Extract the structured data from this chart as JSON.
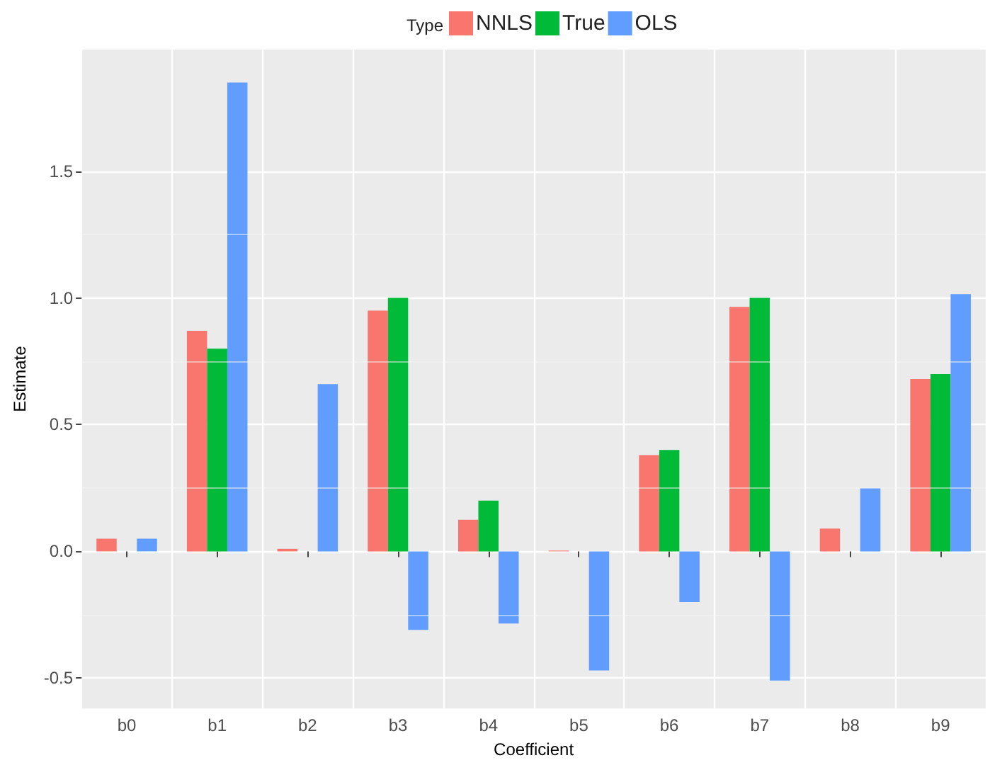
{
  "chart_data": {
    "type": "bar",
    "xlabel": "Coefficient",
    "ylabel": "Estimate",
    "legend_title": "Type",
    "categories": [
      "b0",
      "b1",
      "b2",
      "b3",
      "b4",
      "b5",
      "b6",
      "b7",
      "b8",
      "b9"
    ],
    "series": [
      {
        "name": "NNLS",
        "color": "#f8766d",
        "values": [
          0.05,
          0.87,
          0.01,
          0.95,
          0.125,
          0.003,
          0.38,
          0.965,
          0.09,
          0.68
        ]
      },
      {
        "name": "True",
        "color": "#00ba38",
        "values": [
          0,
          0.8,
          0,
          1.0,
          0.2,
          0,
          0.4,
          1.0,
          0,
          0.7
        ]
      },
      {
        "name": "OLS",
        "color": "#619cff",
        "values": [
          0.05,
          1.85,
          0.66,
          -0.31,
          -0.285,
          -0.47,
          -0.2,
          -0.51,
          0.25,
          1.015
        ]
      }
    ],
    "ylim": [
      -0.62,
      1.98
    ],
    "yticks": [
      {
        "value": -0.5,
        "label": "-0.5"
      },
      {
        "value": 0,
        "label": "0.0"
      },
      {
        "value": 0.5,
        "label": "0.5"
      },
      {
        "value": 1,
        "label": "1.0"
      },
      {
        "value": 1.5,
        "label": "1.5"
      }
    ],
    "grid": true,
    "legend": "top"
  }
}
